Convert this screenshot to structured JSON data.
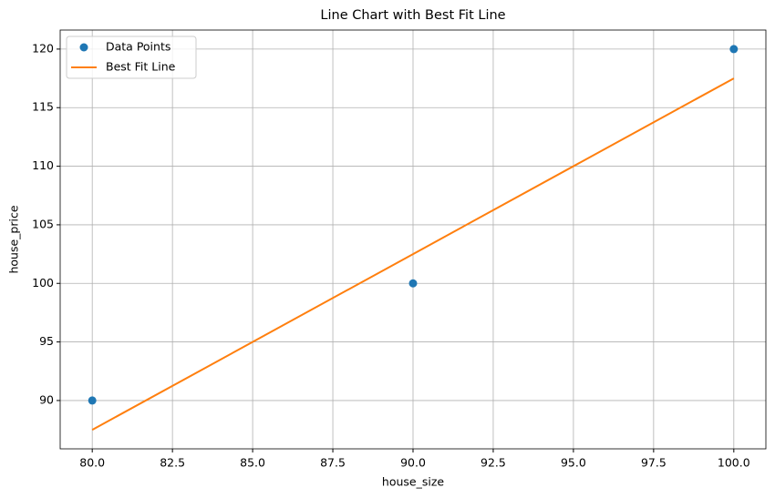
{
  "chart_data": {
    "type": "line",
    "title": "Line Chart with Best Fit Line",
    "x_label": "house_size",
    "y_label": "house_price",
    "x": [
      80,
      90,
      100
    ],
    "series": [
      {
        "name": "Data Points",
        "color": "#1f77b4",
        "style": "markers",
        "values": [
          90,
          100,
          120
        ]
      },
      {
        "name": "Best Fit Line",
        "color": "#ff7f0e",
        "style": "line",
        "values": [
          87.5,
          102.5,
          117.5
        ]
      }
    ],
    "xlim": [
      79,
      101
    ],
    "xticks": [
      {
        "value": 80,
        "label": "80.0"
      },
      82.5,
      {
        "value": 85,
        "label": "85.0"
      },
      87.5,
      {
        "value": 90,
        "label": "90.0"
      },
      92.5,
      {
        "value": 95,
        "label": "95.0"
      },
      97.5,
      {
        "value": 100,
        "label": "100.0"
      }
    ],
    "ylim": [
      85.875,
      121.625
    ],
    "yticks": [
      90,
      95,
      100,
      105,
      110,
      115,
      120
    ],
    "grid": true,
    "legend": "upper left"
  }
}
